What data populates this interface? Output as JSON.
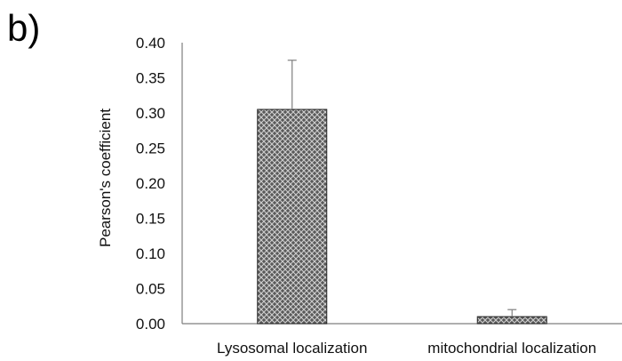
{
  "panel_label": "b)",
  "chart_data": {
    "type": "bar",
    "categories": [
      "Lysosomal localization",
      "mitochondrial localization"
    ],
    "values": [
      0.305,
      0.01
    ],
    "error_plus": [
      0.07,
      0.01
    ],
    "title": "",
    "xlabel": "",
    "ylabel": "Pearson's coefficient",
    "ylim": [
      0,
      0.4
    ],
    "yticks": [
      "0.00",
      "0.05",
      "0.10",
      "0.15",
      "0.20",
      "0.25",
      "0.30",
      "0.35",
      "0.40"
    ],
    "grid": false,
    "legend": "none",
    "colors": {
      "bar_fill": "#5a5a5a",
      "bar_pattern": "#cfcfcf",
      "axis": "#7f7f7f",
      "error_bar": "#7f7f7f"
    }
  }
}
